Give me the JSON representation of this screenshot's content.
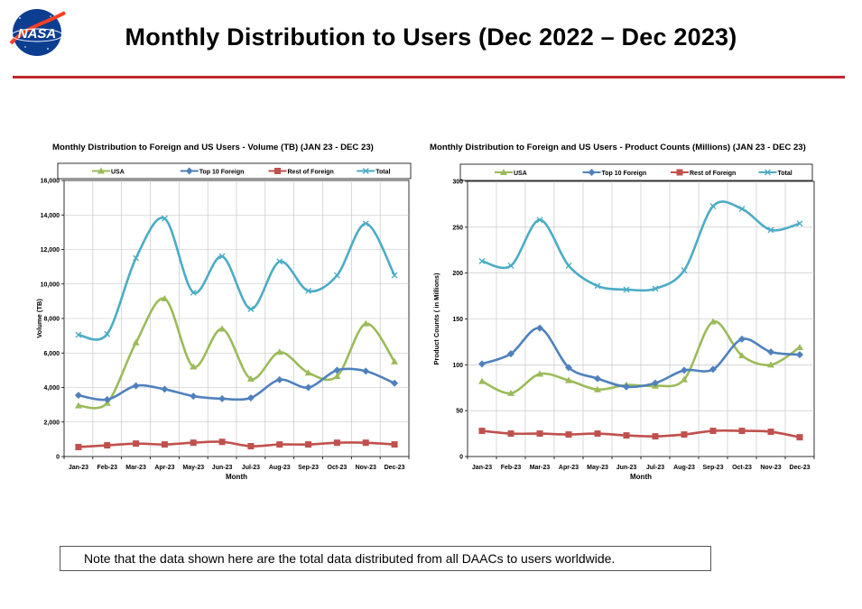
{
  "page": {
    "title": "Monthly Distribution to Users (Dec 2022 – Dec 2023)",
    "logo_text": "NASA",
    "note": "Note that the data shown here are the total data distributed from all DAACs to users worldwide."
  },
  "colors": {
    "usa": "#9bbb59",
    "top10": "#4f81bd",
    "rest": "#c0504d",
    "total": "#4bacc6",
    "rule": "#c0282d"
  },
  "chart_data": [
    {
      "type": "line",
      "title": "Monthly Distribution to Foreign and US Users - Volume  (TB) (JAN 23 - DEC 23)",
      "xlabel": "Month",
      "ylabel": "Volume (TB)",
      "ylim": [
        0,
        16000
      ],
      "yticks": [
        0,
        2000,
        4000,
        6000,
        8000,
        10000,
        12000,
        14000,
        16000
      ],
      "ytick_labels": [
        "0",
        "2,000",
        "4,000",
        "6,000",
        "8,000",
        "10,000",
        "12,000",
        "14,000",
        "16,000"
      ],
      "legend_position": "top",
      "grid": true,
      "categories": [
        "Jan-23",
        "Feb-23",
        "Mar-23",
        "Apr-23",
        "May-23",
        "Jun-23",
        "Jul-23",
        "Aug-23",
        "Sep-23",
        "Oct-23",
        "Nov-23",
        "Dec-23"
      ],
      "series": [
        {
          "name": "USA",
          "marker": "triangle",
          "values": [
            2950,
            3100,
            6600,
            9150,
            5200,
            7400,
            4500,
            6050,
            4850,
            4650,
            7700,
            5500
          ]
        },
        {
          "name": "Top 10 Foreign",
          "marker": "diamond",
          "values": [
            3550,
            3300,
            4100,
            3900,
            3500,
            3350,
            3400,
            4450,
            4000,
            5000,
            4950,
            4250
          ]
        },
        {
          "name": "Rest of Foreign",
          "marker": "square",
          "values": [
            550,
            650,
            750,
            700,
            800,
            850,
            600,
            700,
            700,
            800,
            800,
            700
          ]
        },
        {
          "name": "Total",
          "marker": "x",
          "values": [
            7050,
            7100,
            11500,
            13800,
            9500,
            11600,
            8550,
            11300,
            9600,
            10500,
            13500,
            10500
          ]
        }
      ]
    },
    {
      "type": "line",
      "title": "Monthly Distribution to Foreign and US Users - Product Counts (Millions) (JAN 23 - DEC 23)",
      "xlabel": "Month",
      "ylabel": "Product Counts ( in Millions)",
      "ylim": [
        0,
        300
      ],
      "yticks": [
        0,
        50,
        100,
        150,
        200,
        250,
        300
      ],
      "ytick_labels": [
        "0",
        "50",
        "100",
        "150",
        "200",
        "250",
        "300"
      ],
      "legend_position": "top",
      "grid": true,
      "categories": [
        "Jan-23",
        "Feb-23",
        "Mar-23",
        "Apr-23",
        "May-23",
        "Jun-23",
        "Jul-23",
        "Aug-23",
        "Sep-23",
        "Oct-23",
        "Nov-23",
        "Dec-23"
      ],
      "series": [
        {
          "name": "USA",
          "marker": "triangle",
          "values": [
            82,
            69,
            90,
            83,
            73,
            78,
            77,
            84,
            147,
            110,
            100,
            119
          ]
        },
        {
          "name": "Top 10 Foreign",
          "marker": "diamond",
          "values": [
            101,
            112,
            140,
            97,
            85,
            76,
            80,
            94,
            95,
            128,
            114,
            111
          ]
        },
        {
          "name": "Rest of Foreign",
          "marker": "square",
          "values": [
            28,
            25,
            25,
            24,
            25,
            23,
            22,
            24,
            28,
            28,
            27,
            21
          ]
        },
        {
          "name": "Total",
          "marker": "x",
          "values": [
            213,
            208,
            258,
            208,
            186,
            182,
            183,
            203,
            273,
            270,
            247,
            254
          ]
        }
      ]
    }
  ]
}
